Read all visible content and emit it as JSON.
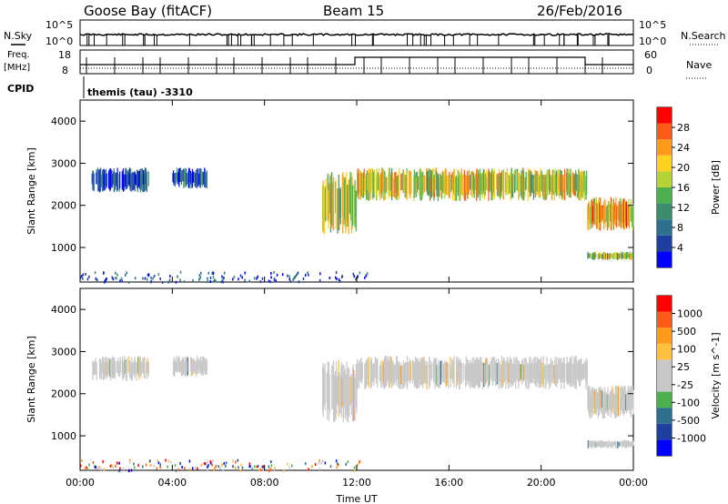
{
  "header": {
    "site": "Goose Bay (fitACF)",
    "beam": "Beam 15",
    "date": "26/Feb/2016"
  },
  "top_panels": {
    "nsky_label": "N.Sky",
    "nsearch_label": "N.Search",
    "freq_label": "Freq.",
    "freq_unit": "[MHz]",
    "nave_label": "Nave",
    "cpid_label": "CPID",
    "cpid_value": "themis (tau) -3310",
    "noise_ticks": [
      "10^5",
      "10^0"
    ],
    "freq_ticks": [
      "18",
      "8"
    ],
    "nave_ticks": [
      "60",
      "0"
    ]
  },
  "colors": {
    "power_scale": [
      "#0000ff",
      "#1f3fa0",
      "#2e6e8e",
      "#3c8c6e",
      "#4caf50",
      "#b5d334",
      "#ffd21f",
      "#ff9a1a",
      "#ff5a1a",
      "#ff0000"
    ],
    "velocity_scale": [
      "#ff0000",
      "#ff5a1a",
      "#ff9a1a",
      "#ffc040",
      "#c8c8c8",
      "#c8c8c8",
      "#4caf50",
      "#2e6e8e",
      "#1f3fa0",
      "#0000ff"
    ],
    "velocity_background": "#c8c8c8"
  },
  "chart_data": [
    {
      "type": "heatmap",
      "title": "Power",
      "xlabel": "Time UT",
      "ylabel": "Slant Range [km]",
      "x_ticks": [
        "00:00",
        "04:00",
        "08:00",
        "12:00",
        "16:00",
        "20:00",
        "00:00"
      ],
      "xlim": [
        0,
        24
      ],
      "ylim": [
        180,
        4500
      ],
      "y_ticks": [
        1000,
        2000,
        3000,
        4000
      ],
      "colorbar_label": "Power [dB]",
      "colorbar_ticks": [
        "4",
        "8",
        "12",
        "16",
        "20",
        "24",
        "28"
      ],
      "colorbar_range": [
        0,
        30
      ],
      "regions": [
        {
          "t": [
            0.5,
            3.0
          ],
          "r": [
            2300,
            2900
          ],
          "level": 0.15
        },
        {
          "t": [
            4.0,
            5.5
          ],
          "r": [
            2400,
            2900
          ],
          "level": 0.2
        },
        {
          "t": [
            10.5,
            12.0
          ],
          "r": [
            1300,
            2800
          ],
          "level": 0.55
        },
        {
          "t": [
            12.0,
            22.0
          ],
          "r": [
            2100,
            2900
          ],
          "level": 0.6
        },
        {
          "t": [
            22.0,
            24.0
          ],
          "r": [
            1400,
            2200
          ],
          "level": 0.7
        },
        {
          "t": [
            22.0,
            24.0
          ],
          "r": [
            700,
            900
          ],
          "level": 0.5
        }
      ]
    },
    {
      "type": "heatmap",
      "title": "Velocity",
      "xlabel": "Time UT",
      "ylabel": "Slant Range [km]",
      "x_ticks": [
        "00:00",
        "04:00",
        "08:00",
        "12:00",
        "16:00",
        "20:00",
        "00:00"
      ],
      "xlim": [
        0,
        24
      ],
      "ylim": [
        180,
        4500
      ],
      "y_ticks": [
        1000,
        2000,
        3000,
        4000
      ],
      "colorbar_label": "Velocity [m s^-1]",
      "colorbar_ticks": [
        "1000",
        "500",
        "100",
        "25",
        "-25",
        "-100",
        "-500",
        "-1000"
      ],
      "regions": [
        {
          "t": [
            0.5,
            3.0
          ],
          "r": [
            2300,
            2900
          ],
          "level": 0.5
        },
        {
          "t": [
            4.0,
            5.5
          ],
          "r": [
            2400,
            2900
          ],
          "level": 0.5
        },
        {
          "t": [
            10.5,
            12.0
          ],
          "r": [
            1300,
            2800
          ],
          "level": 0.5
        },
        {
          "t": [
            12.0,
            22.0
          ],
          "r": [
            2100,
            2900
          ],
          "level": 0.5
        },
        {
          "t": [
            22.0,
            24.0
          ],
          "r": [
            1400,
            2200
          ],
          "level": 0.5
        },
        {
          "t": [
            22.0,
            24.0
          ],
          "r": [
            700,
            900
          ],
          "level": 0.6
        }
      ]
    }
  ]
}
